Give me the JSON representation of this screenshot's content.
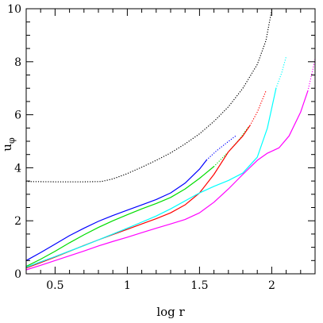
{
  "chart_data": {
    "type": "line",
    "title": "",
    "xlabel": "log r",
    "ylabel": "u",
    "ylabel_sub": "φ",
    "xlim": [
      0.3,
      2.3
    ],
    "ylim": [
      0,
      10
    ],
    "x_ticks_major": [
      0.5,
      1,
      1.5,
      2
    ],
    "x_tick_labels": [
      "0.5",
      "1",
      "1.5",
      "2"
    ],
    "x_ticks_minor_step": 0.1,
    "y_ticks_major": [
      0,
      2,
      4,
      6,
      8,
      10
    ],
    "y_tick_labels": [
      "0",
      "2",
      "4",
      "6",
      "8",
      "10"
    ],
    "y_ticks_minor_step": 0.5,
    "grid": false,
    "legend": "none",
    "series": [
      {
        "color": "#000000",
        "segments": [
          {
            "style": "dotted",
            "points": [
              [
                0.3,
                3.48
              ],
              [
                0.5,
                3.47
              ],
              [
                0.7,
                3.47
              ],
              [
                0.82,
                3.48
              ],
              [
                0.9,
                3.58
              ],
              [
                1.0,
                3.78
              ],
              [
                1.1,
                4.02
              ],
              [
                1.2,
                4.28
              ],
              [
                1.3,
                4.56
              ],
              [
                1.4,
                4.9
              ],
              [
                1.5,
                5.28
              ],
              [
                1.6,
                5.75
              ],
              [
                1.7,
                6.3
              ],
              [
                1.8,
                7.0
              ],
              [
                1.9,
                7.9
              ],
              [
                1.96,
                8.8
              ],
              [
                2.0,
                9.95
              ]
            ]
          }
        ]
      },
      {
        "color": "#0000ff",
        "segments": [
          {
            "style": "solid",
            "points": [
              [
                0.3,
                0.5
              ],
              [
                0.4,
                0.8
              ],
              [
                0.5,
                1.12
              ],
              [
                0.6,
                1.44
              ],
              [
                0.7,
                1.72
              ],
              [
                0.8,
                1.98
              ],
              [
                0.9,
                2.2
              ],
              [
                1.0,
                2.4
              ],
              [
                1.1,
                2.6
              ],
              [
                1.2,
                2.8
              ],
              [
                1.3,
                3.05
              ],
              [
                1.4,
                3.42
              ],
              [
                1.5,
                3.95
              ],
              [
                1.55,
                4.3
              ]
            ]
          },
          {
            "style": "dotted",
            "points": [
              [
                1.55,
                4.3
              ],
              [
                1.62,
                4.65
              ],
              [
                1.69,
                4.95
              ],
              [
                1.75,
                5.2
              ]
            ]
          }
        ]
      },
      {
        "color": "#00dd00",
        "segments": [
          {
            "style": "solid",
            "points": [
              [
                0.3,
                0.28
              ],
              [
                0.4,
                0.55
              ],
              [
                0.5,
                0.85
              ],
              [
                0.6,
                1.17
              ],
              [
                0.7,
                1.47
              ],
              [
                0.8,
                1.75
              ],
              [
                0.9,
                2.0
              ],
              [
                1.0,
                2.23
              ],
              [
                1.1,
                2.45
              ],
              [
                1.2,
                2.65
              ],
              [
                1.3,
                2.88
              ],
              [
                1.4,
                3.2
              ],
              [
                1.5,
                3.6
              ],
              [
                1.6,
                4.05
              ]
            ]
          },
          {
            "style": "dotted",
            "points": [
              [
                1.6,
                4.05
              ],
              [
                1.7,
                4.6
              ],
              [
                1.78,
                5.1
              ],
              [
                1.84,
                5.55
              ]
            ]
          }
        ]
      },
      {
        "color": "#ff0000",
        "segments": [
          {
            "style": "solid",
            "points": [
              [
                0.3,
                0.22
              ],
              [
                0.4,
                0.42
              ],
              [
                0.5,
                0.63
              ],
              [
                0.6,
                0.85
              ],
              [
                0.7,
                1.07
              ],
              [
                0.8,
                1.28
              ],
              [
                0.9,
                1.48
              ],
              [
                1.0,
                1.68
              ],
              [
                1.1,
                1.88
              ],
              [
                1.2,
                2.08
              ],
              [
                1.3,
                2.3
              ],
              [
                1.4,
                2.6
              ],
              [
                1.5,
                3.05
              ],
              [
                1.6,
                3.75
              ],
              [
                1.7,
                4.6
              ],
              [
                1.8,
                5.2
              ],
              [
                1.85,
                5.6
              ]
            ]
          },
          {
            "style": "dotted",
            "points": [
              [
                1.85,
                5.6
              ],
              [
                1.9,
                6.1
              ],
              [
                1.96,
                6.9
              ]
            ]
          }
        ]
      },
      {
        "color": "#00ffff",
        "segments": [
          {
            "style": "solid",
            "points": [
              [
                0.3,
                0.25
              ],
              [
                0.4,
                0.45
              ],
              [
                0.5,
                0.65
              ],
              [
                0.6,
                0.86
              ],
              [
                0.7,
                1.06
              ],
              [
                0.8,
                1.28
              ],
              [
                0.9,
                1.5
              ],
              [
                1.0,
                1.72
              ],
              [
                1.1,
                1.95
              ],
              [
                1.2,
                2.18
              ],
              [
                1.3,
                2.45
              ],
              [
                1.4,
                2.75
              ],
              [
                1.5,
                3.05
              ],
              [
                1.6,
                3.3
              ],
              [
                1.7,
                3.52
              ],
              [
                1.8,
                3.8
              ],
              [
                1.9,
                4.4
              ],
              [
                1.97,
                5.5
              ],
              [
                2.03,
                7.0
              ]
            ]
          },
          {
            "style": "dotted",
            "points": [
              [
                2.03,
                7.0
              ],
              [
                2.07,
                7.6
              ],
              [
                2.1,
                8.2
              ]
            ]
          }
        ]
      },
      {
        "color": "#ff00ff",
        "segments": [
          {
            "style": "solid",
            "points": [
              [
                0.3,
                0.15
              ],
              [
                0.4,
                0.32
              ],
              [
                0.5,
                0.5
              ],
              [
                0.6,
                0.68
              ],
              [
                0.7,
                0.86
              ],
              [
                0.8,
                1.05
              ],
              [
                0.9,
                1.22
              ],
              [
                1.0,
                1.38
              ],
              [
                1.1,
                1.55
              ],
              [
                1.2,
                1.72
              ],
              [
                1.3,
                1.88
              ],
              [
                1.4,
                2.05
              ],
              [
                1.5,
                2.3
              ],
              [
                1.6,
                2.7
              ],
              [
                1.7,
                3.2
              ],
              [
                1.8,
                3.75
              ],
              [
                1.9,
                4.28
              ],
              [
                1.97,
                4.55
              ],
              [
                2.05,
                4.75
              ],
              [
                2.12,
                5.2
              ],
              [
                2.2,
                6.1
              ],
              [
                2.25,
                6.9
              ]
            ]
          },
          {
            "style": "dotted",
            "points": [
              [
                2.25,
                6.9
              ],
              [
                2.28,
                7.6
              ],
              [
                2.3,
                8.1
              ]
            ]
          }
        ]
      }
    ]
  }
}
